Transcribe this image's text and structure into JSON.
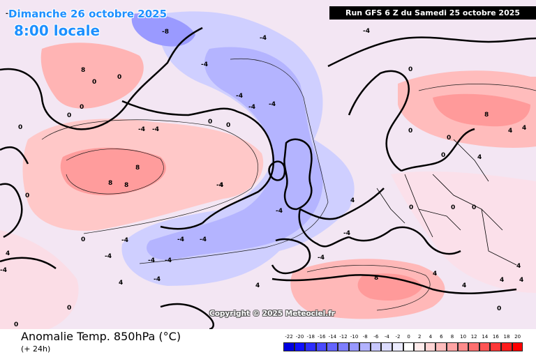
{
  "header": {
    "date": "Dimanche 26 octobre 2025",
    "time": "8:00 locale",
    "run": "Run GFS 6 Z du Samedi 25 octobre 2025"
  },
  "footer": {
    "title": "Anomalie Temp. 850hPa (°C)",
    "subtitle": "(+ 24h)",
    "copyright": "Copyright © 2025 Meteociel.fr"
  },
  "legend": {
    "labels": [
      "-22",
      "-20",
      "-18",
      "-16",
      "-14",
      "-12",
      "-10",
      "-8",
      "-6",
      "-4",
      "-2",
      "0",
      "2",
      "4",
      "6",
      "8",
      "10",
      "12",
      "14",
      "16",
      "18",
      "20"
    ],
    "colors": [
      "#0000e0",
      "#1010ff",
      "#2e2eff",
      "#4a4aff",
      "#6464ff",
      "#7e7eff",
      "#9898ff",
      "#b2b2ff",
      "#c8c8ff",
      "#dcdcff",
      "#ececff",
      "#ffffff",
      "#ffecec",
      "#ffd4d4",
      "#ffbcbc",
      "#ffa4a4",
      "#ff8c8c",
      "#ff7070",
      "#ff5454",
      "#ff3838",
      "#ff1c1c",
      "#ff0000"
    ]
  },
  "map": {
    "value_labels": [
      "-4",
      "-8",
      "-4",
      "-4",
      "-4",
      "-4",
      "-4",
      "-4",
      "-4",
      "-4",
      "-4",
      "-4",
      "-4",
      "-4",
      "-4",
      "-4",
      "-4",
      "-4",
      "-4",
      "-4",
      "-4",
      "-4",
      "0",
      "0",
      "0",
      "0",
      "0",
      "0",
      "0",
      "0",
      "0",
      "0",
      "0",
      "0",
      "0",
      "0",
      "0",
      "0",
      "0",
      "0",
      "0",
      "4",
      "4",
      "4",
      "4",
      "4",
      "4",
      "4",
      "4",
      "4",
      "4",
      "4",
      "4",
      "4",
      "8",
      "8",
      "8",
      "8",
      "8",
      "8"
    ]
  }
}
